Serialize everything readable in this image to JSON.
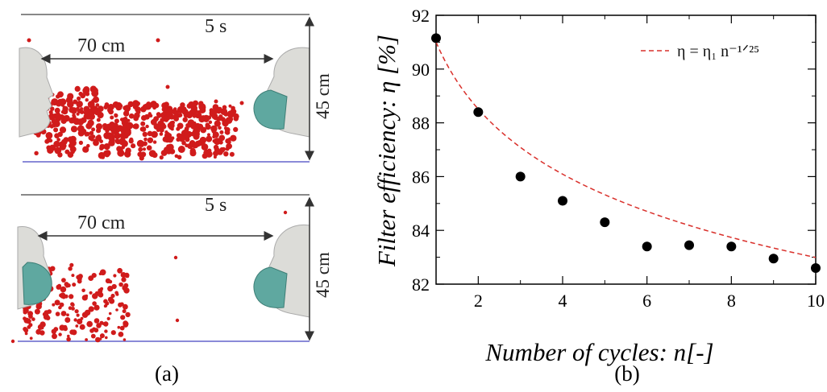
{
  "panel_a": {
    "caption": "(a)",
    "scenes": [
      {
        "time": "5 s",
        "distance": "70 cm",
        "height": "45 cm",
        "mask_on": "receiver"
      },
      {
        "time": "5 s",
        "distance": "70 cm",
        "height": "45 cm",
        "mask_on": "emitter"
      }
    ],
    "colors": {
      "droplet": "#d01b1b",
      "face": "#d9d9d6",
      "mask": "#5fa8a0",
      "floor": "#8a8ad8"
    }
  },
  "panel_b": {
    "caption": "(b)",
    "chart_data": {
      "type": "scatter",
      "xlabel": "Number of cycles: n[-]",
      "ylabel": "Filter efficiency:  η [%]",
      "xlim": [
        1,
        10
      ],
      "ylim": [
        82,
        92
      ],
      "x_ticks": [
        2,
        4,
        6,
        8,
        10
      ],
      "y_ticks": [
        82,
        84,
        86,
        88,
        90,
        92
      ],
      "series": [
        {
          "style": "markers",
          "color": "#000000",
          "x": [
            1,
            2,
            3,
            4,
            5,
            6,
            7,
            8,
            9,
            10
          ],
          "y": [
            91.15,
            88.4,
            86.0,
            85.1,
            84.3,
            83.4,
            83.45,
            83.4,
            82.95,
            82.6
          ]
        },
        {
          "name": "η =  η₁ n⁻¹ᐟ²⁵",
          "style": "dashed",
          "color": "#d9302b",
          "eta1": 91.0,
          "exponent": -0.04
        }
      ],
      "legend_position": "top-right",
      "grid": false
    }
  }
}
